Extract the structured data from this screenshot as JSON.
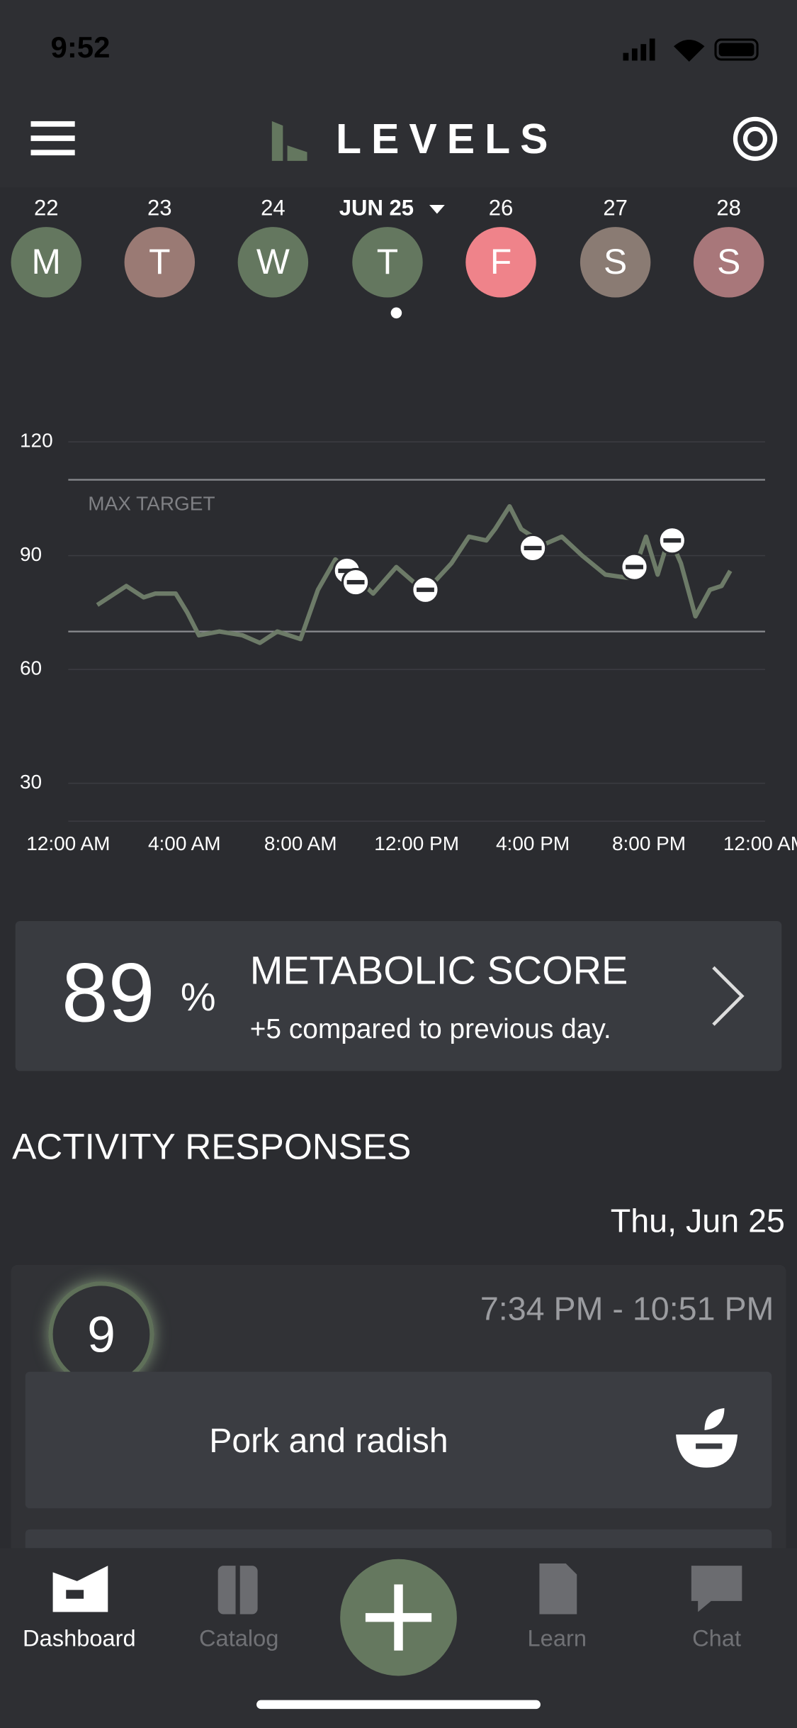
{
  "status_bar": {
    "time": "9:52"
  },
  "header": {
    "title": "LEVELS"
  },
  "days": [
    {
      "date": "22",
      "letter": "M",
      "color": "#64775f"
    },
    {
      "date": "23",
      "letter": "T",
      "color": "#9a7a74"
    },
    {
      "date": "24",
      "letter": "W",
      "color": "#64775f"
    },
    {
      "date": "JUN 25",
      "letter": "T",
      "color": "#64775f"
    },
    {
      "date": "26",
      "letter": "F",
      "color": "#ef838a"
    },
    {
      "date": "27",
      "letter": "S",
      "color": "#8a7b73"
    },
    {
      "date": "28",
      "letter": "S",
      "color": "#a8777a"
    }
  ],
  "chart_data": {
    "type": "line",
    "annotation": "MAX TARGET",
    "targets": {
      "max": 110,
      "min": 70
    },
    "color": "#6d7b68",
    "x": [
      1.0,
      1.4,
      2.0,
      2.6,
      3.0,
      3.7,
      4.1,
      4.5,
      5.2,
      6.0,
      6.6,
      7.2,
      8.0,
      8.6,
      9.2,
      9.8,
      10.5,
      11.3,
      11.9,
      12.6,
      13.2,
      13.8,
      14.4,
      14.7,
      15.2,
      15.6,
      16.4,
      17.0,
      17.7,
      18.5,
      19.4,
      19.9,
      20.3,
      20.7,
      21.1,
      21.6,
      22.1,
      22.5,
      22.8
    ],
    "values": [
      77,
      79,
      82,
      79,
      80,
      80,
      75,
      69,
      70,
      69,
      67,
      70,
      68,
      81,
      89,
      85,
      80,
      87,
      83,
      83,
      88,
      95,
      94,
      97,
      103,
      97,
      93,
      95,
      90,
      85,
      84,
      95,
      85,
      95,
      88,
      74,
      81,
      82,
      86
    ],
    "events": {
      "x": [
        9.6,
        9.9,
        12.3,
        16.0,
        19.5,
        20.8
      ],
      "values": [
        86,
        83,
        81,
        92,
        87,
        94
      ]
    },
    "xlim": [
      0,
      24
    ],
    "xticks": [
      {
        "value": 0,
        "label": "12:00 AM"
      },
      {
        "value": 4,
        "label": "4:00 AM"
      },
      {
        "value": 8,
        "label": "8:00 AM"
      },
      {
        "value": 12,
        "label": "12:00 PM"
      },
      {
        "value": 16,
        "label": "4:00 PM"
      },
      {
        "value": 20,
        "label": "8:00 PM"
      },
      {
        "value": 24,
        "label": "12:00 AM"
      }
    ],
    "ylim": [
      20,
      120
    ],
    "yticks": [
      30,
      60,
      90,
      120
    ],
    "grid": true
  },
  "metabolic": {
    "score": 89,
    "unit": "%",
    "title": "METABOLIC SCORE",
    "subtitle": "+5 compared to previous day."
  },
  "activity": {
    "title": "ACTIVITY RESPONSES",
    "date": "Thu, Jun 25",
    "card": {
      "score": 9,
      "time": "7:34 PM - 10:51 PM",
      "meal": "Pork and radish"
    }
  },
  "tabs": [
    "Dashboard",
    "Catalog",
    "Learn",
    "Chat"
  ]
}
